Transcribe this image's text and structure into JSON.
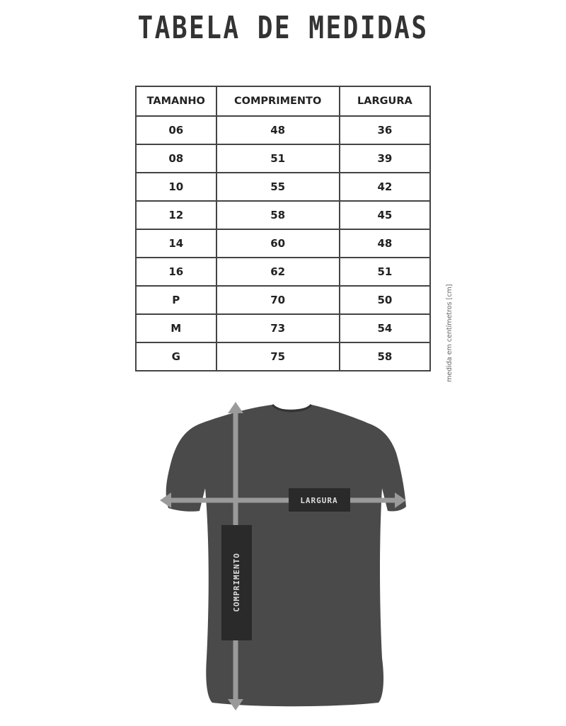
{
  "title": "TABELA DE MEDIDAS",
  "table": {
    "headers": [
      "TAMANHO",
      "COMPRIMENTO",
      "LARGURA"
    ],
    "rows": [
      [
        "06",
        "48",
        "36"
      ],
      [
        "08",
        "51",
        "39"
      ],
      [
        "10",
        "55",
        "42"
      ],
      [
        "12",
        "58",
        "45"
      ],
      [
        "14",
        "60",
        "48"
      ],
      [
        "16",
        "62",
        "51"
      ],
      [
        "P",
        "70",
        "50"
      ],
      [
        "M",
        "73",
        "54"
      ],
      [
        "G",
        "75",
        "58"
      ]
    ]
  },
  "note": "medida em centímetros [cm]",
  "diagram": {
    "width_label": "LARGURA",
    "length_label": "COMPRIMENTO",
    "shirt_color": "#4a4a4a",
    "arrow_color": "#9a9a9a"
  }
}
